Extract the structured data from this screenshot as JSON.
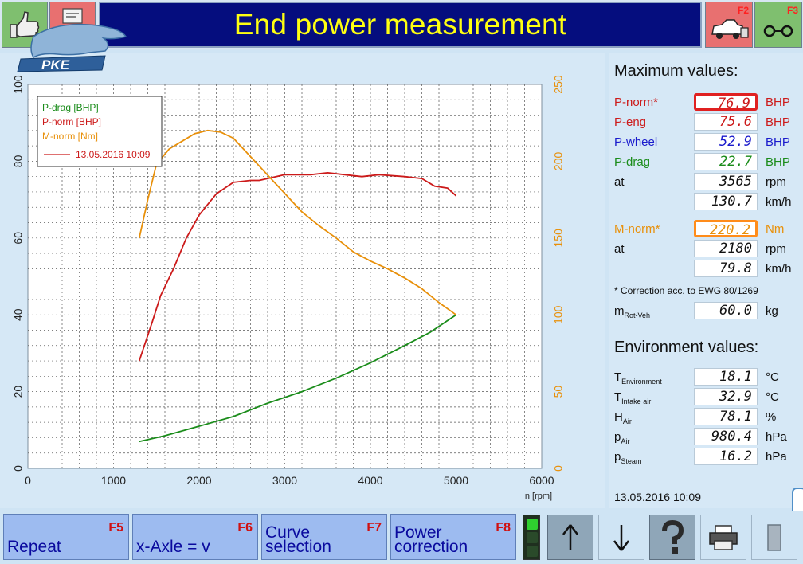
{
  "header": {
    "title": "End power measurement",
    "logo_text": "PKE",
    "f2_key": "F2",
    "f3_key": "F3"
  },
  "chart_data": {
    "type": "line",
    "xlabel": "n [rpm]",
    "xlim": [
      0,
      6000
    ],
    "x_ticks": [
      "0",
      "1000",
      "2000",
      "3000",
      "4000",
      "5000",
      "6000"
    ],
    "y_left_lim": [
      0,
      100
    ],
    "y_left_ticks": [
      "0",
      "20",
      "40",
      "60",
      "80",
      "100"
    ],
    "y_right_lim": [
      0,
      250
    ],
    "y_right_ticks": [
      "0",
      "50",
      "100",
      "150",
      "200",
      "250"
    ],
    "grid": true,
    "legend_position": "top-left",
    "legend": [
      "P-drag [BHP]",
      "P-norm [BHP]",
      "M-norm [Nm]"
    ],
    "legend_run": "13.05.2016 10:09",
    "series": [
      {
        "name": "P-drag [BHP]",
        "axis": "left",
        "color": "#1a8c1a",
        "points": [
          [
            1300,
            7
          ],
          [
            1600,
            8.5
          ],
          [
            2000,
            11
          ],
          [
            2400,
            13.5
          ],
          [
            2800,
            17
          ],
          [
            3200,
            20
          ],
          [
            3600,
            23.5
          ],
          [
            4000,
            27.5
          ],
          [
            4400,
            32
          ],
          [
            4700,
            35.5
          ],
          [
            5000,
            40
          ]
        ]
      },
      {
        "name": "P-norm [BHP]",
        "axis": "left",
        "color": "#cc1a1a",
        "points": [
          [
            1300,
            28
          ],
          [
            1450,
            38
          ],
          [
            1550,
            45
          ],
          [
            1700,
            52
          ],
          [
            1850,
            60
          ],
          [
            2000,
            66
          ],
          [
            2200,
            71.5
          ],
          [
            2400,
            74.5
          ],
          [
            2600,
            75
          ],
          [
            2700,
            75
          ],
          [
            2800,
            75.5
          ],
          [
            3000,
            76.5
          ],
          [
            3300,
            76.5
          ],
          [
            3500,
            77
          ],
          [
            3700,
            76.5
          ],
          [
            3900,
            76
          ],
          [
            4100,
            76.5
          ],
          [
            4400,
            76
          ],
          [
            4600,
            75.5
          ],
          [
            4750,
            73.5
          ],
          [
            4900,
            73
          ],
          [
            5000,
            71
          ]
        ]
      },
      {
        "name": "M-norm [Nm]",
        "axis": "right",
        "color": "#e8900a",
        "points": [
          [
            1300,
            150
          ],
          [
            1400,
            175
          ],
          [
            1500,
            198
          ],
          [
            1650,
            208
          ],
          [
            1800,
            213
          ],
          [
            1950,
            218
          ],
          [
            2100,
            220
          ],
          [
            2250,
            219
          ],
          [
            2400,
            215
          ],
          [
            2600,
            203
          ],
          [
            2800,
            191
          ],
          [
            3000,
            179
          ],
          [
            3200,
            167
          ],
          [
            3400,
            158
          ],
          [
            3600,
            150
          ],
          [
            3800,
            141
          ],
          [
            4000,
            135
          ],
          [
            4200,
            130
          ],
          [
            4400,
            124
          ],
          [
            4600,
            117
          ],
          [
            4800,
            108
          ],
          [
            5000,
            100
          ]
        ]
      }
    ]
  },
  "max_values": {
    "title": "Maximum values:",
    "rows": [
      {
        "label": "P-norm*",
        "value": "76.9",
        "unit": "BHP"
      },
      {
        "label": "P-eng",
        "value": "75.6",
        "unit": "BHP"
      },
      {
        "label": "P-wheel",
        "value": "52.9",
        "unit": "BHP"
      },
      {
        "label": "P-drag",
        "value": "22.7",
        "unit": "BHP"
      },
      {
        "label": "at",
        "value": "3565",
        "unit": "rpm"
      },
      {
        "label": "",
        "value": "130.7",
        "unit": "km/h"
      },
      {
        "label": "M-norm*",
        "value": "220.2",
        "unit": "Nm"
      },
      {
        "label": "at",
        "value": "2180",
        "unit": "rpm"
      },
      {
        "label": "",
        "value": "79.8",
        "unit": "km/h"
      }
    ],
    "footnote": "* Correction acc. to EWG 80/1269",
    "mrot": {
      "label": "m",
      "sub": "Rot-Veh",
      "value": "60.0",
      "unit": "kg"
    }
  },
  "environment": {
    "title": "Environment values:",
    "rows": [
      {
        "label": "T",
        "sub": "Environment",
        "value": "18.1",
        "unit": "°C"
      },
      {
        "label": "T",
        "sub": "Intake air",
        "value": "32.9",
        "unit": "°C"
      },
      {
        "label": "H",
        "sub": "Air",
        "value": "78.1",
        "unit": "%"
      },
      {
        "label": "p",
        "sub": "Air",
        "value": "980.4",
        "unit": "hPa"
      },
      {
        "label": "p",
        "sub": "Steam",
        "value": "16.2",
        "unit": "hPa"
      }
    ]
  },
  "timestamp": "13.05.2016   10:09",
  "toolbar": {
    "f5": {
      "key": "F5",
      "label": "Repeat"
    },
    "f6": {
      "key": "F6",
      "label": "x-Axle = v"
    },
    "f7": {
      "key": "F7",
      "label_1": "Curve",
      "label_2": "selection"
    },
    "f8": {
      "key": "F8",
      "label_1": "Power",
      "label_2": "correction"
    }
  },
  "colors": {
    "title_bg": "#050d7e",
    "title_text": "#ffff10",
    "p_norm": "#cc1a1a",
    "p_wheel": "#1a1acc",
    "p_drag": "#1a8c1a",
    "m_norm": "#e8900a",
    "button_bg": "#9dbbf0"
  }
}
